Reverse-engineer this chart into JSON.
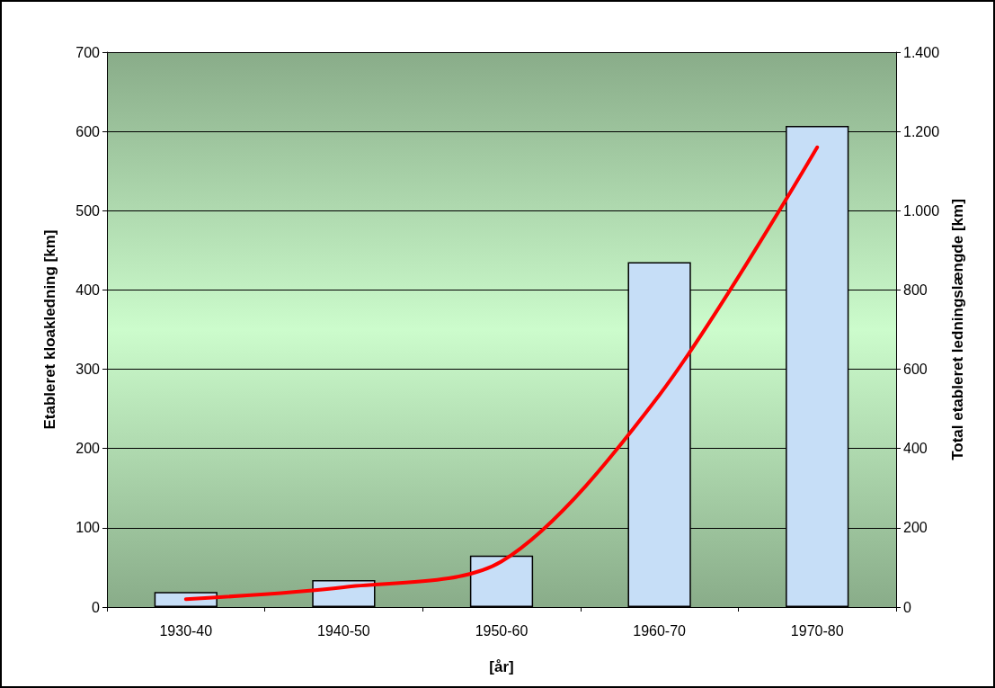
{
  "chart_data": {
    "type": "bar",
    "xlabel": "[år]",
    "ylabel": "Etableret kloakledning [km]",
    "y2label": "Total etableret ledningslængde [km]",
    "categories": [
      "1930-40",
      "1940-50",
      "1950-60",
      "1960-70",
      "1970-80"
    ],
    "series": [
      {
        "color": "#c6def7",
        "values": [
          19,
          34,
          65,
          435,
          607
        ]
      },
      {
        "type": "line",
        "axis": "y2",
        "color": "#ff0000",
        "values": [
          20,
          50,
          115,
          535,
          1160
        ]
      }
    ],
    "ylim": [
      0,
      700
    ],
    "yticks": [
      0,
      100,
      200,
      300,
      400,
      500,
      600,
      700
    ],
    "y2lim": [
      0,
      1400
    ],
    "y2ticks": [
      0,
      {
        "value": 200,
        "label": "200"
      },
      {
        "value": 400,
        "label": "400"
      },
      {
        "value": 600,
        "label": "600"
      },
      {
        "value": 800,
        "label": "800"
      },
      {
        "value": 1000,
        "label": "1.000"
      },
      {
        "value": 1200,
        "label": "1.200"
      },
      {
        "value": 1400,
        "label": "1.400"
      }
    ],
    "grid": "y",
    "marker": "none",
    "line_style": "solid"
  }
}
